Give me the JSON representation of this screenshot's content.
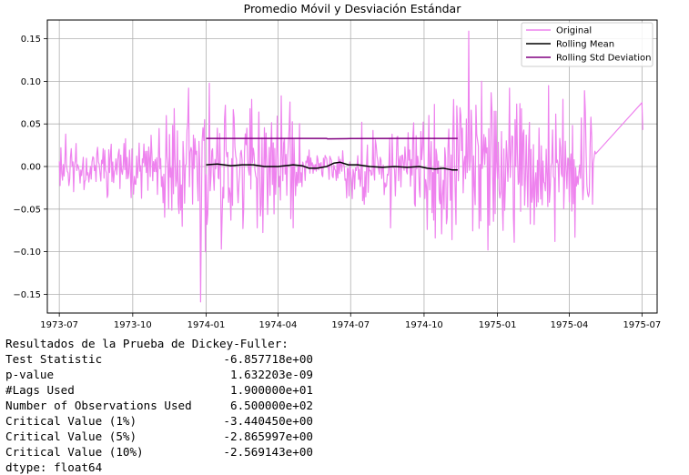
{
  "chart_data": {
    "type": "line",
    "title": "Promedio Móvil y Desviación Estándar",
    "xlabel": "",
    "ylabel": "",
    "xlim": [
      "1973-06-16",
      "1975-07-20"
    ],
    "ylim": [
      -0.172,
      0.172
    ],
    "grid": true,
    "legend_position": "top-right",
    "xticks": [
      "1973-07",
      "1973-10",
      "1974-01",
      "1974-04",
      "1974-07",
      "1974-10",
      "1975-01",
      "1975-04",
      "1975-07"
    ],
    "yticks": [
      "−0.15",
      "−0.10",
      "−0.05",
      "0.00",
      "0.05",
      "0.10",
      "0.15"
    ],
    "series": [
      {
        "name": "Original",
        "color": "#ee82ee",
        "noise_ranges": [
          {
            "start": "1973-07-01",
            "end": "1973-10-31",
            "amp": 0.028,
            "seed": 11
          },
          {
            "start": "1973-11-01",
            "end": "1973-12-31",
            "amp": 0.06,
            "seed": 23
          },
          {
            "start": "1974-01-01",
            "end": "1974-05-01",
            "amp": 0.06,
            "seed": 37
          },
          {
            "start": "1974-05-02",
            "end": "1974-06-25",
            "amp": 0.015,
            "seed": 41
          },
          {
            "start": "1974-06-26",
            "end": "1974-10-01",
            "amp": 0.04,
            "seed": 53
          },
          {
            "start": "1974-10-02",
            "end": "1975-01-31",
            "amp": 0.07,
            "seed": 67
          },
          {
            "start": "1975-02-01",
            "end": "1975-05-01",
            "amp": 0.055,
            "seed": 79
          }
        ],
        "points": [
          [
            "1973-07-01",
            0.006
          ],
          [
            "1973-07-05",
            -0.016
          ],
          [
            "1973-07-09",
            0.038
          ],
          [
            "1973-11-22",
            0.068
          ],
          [
            "1973-12-05",
            -0.043
          ],
          [
            "1973-12-10",
            0.092
          ],
          [
            "1973-12-15",
            -0.044
          ],
          [
            "1973-12-20",
            0.018
          ],
          [
            "1973-12-25",
            -0.159
          ],
          [
            "1973-12-30",
            0.055
          ],
          [
            "1973-12-31",
            -0.1
          ],
          [
            "1974-01-05",
            0.098
          ],
          [
            "1974-01-11",
            -0.028
          ],
          [
            "1974-01-15",
            0.045
          ],
          [
            "1974-01-20",
            -0.097
          ],
          [
            "1974-01-25",
            0.072
          ],
          [
            "1974-02-01",
            -0.063
          ],
          [
            "1974-03-10",
            -0.058
          ],
          [
            "1974-04-05",
            0.083
          ],
          [
            "1974-04-20",
            -0.072
          ],
          [
            "1974-06-27",
            -0.002
          ],
          [
            "1974-07-15",
            0.052
          ],
          [
            "1974-08-20",
            -0.072
          ],
          [
            "1974-09-27",
            0.041
          ],
          [
            "1974-10-07",
            0.06
          ],
          [
            "1974-10-12",
            -0.007
          ],
          [
            "1974-10-20",
            -0.038
          ],
          [
            "1974-10-27",
            0.022
          ],
          [
            "1974-11-01",
            0.044
          ],
          [
            "1974-11-10",
            -0.068
          ],
          [
            "1974-11-18",
            0.045
          ],
          [
            "1974-11-24",
            -0.007
          ],
          [
            "1974-11-26",
            0.159
          ],
          [
            "1974-12-05",
            0.072
          ],
          [
            "1974-12-12",
            0.1
          ],
          [
            "1974-12-20",
            -0.098
          ],
          [
            "1974-12-28",
            0.065
          ],
          [
            "1975-01-08",
            -0.075
          ],
          [
            "1975-01-16",
            0.092
          ],
          [
            "1975-01-22",
            -0.089
          ],
          [
            "1975-02-03",
            0.043
          ],
          [
            "1975-02-16",
            -0.068
          ],
          [
            "1975-03-06",
            0.095
          ],
          [
            "1975-03-14",
            -0.088
          ],
          [
            "1975-03-24",
            0.079
          ],
          [
            "1975-04-08",
            -0.083
          ],
          [
            "1975-04-20",
            0.089
          ],
          [
            "1975-04-24",
            -0.032
          ],
          [
            "1975-04-28",
            0.058
          ],
          [
            "1975-05-03",
            0.018
          ],
          [
            "1975-05-04",
            0.015
          ],
          [
            "1975-07-01",
            0.075
          ],
          [
            "1975-07-02",
            0.043
          ]
        ]
      },
      {
        "name": "Rolling Mean",
        "color": "#000000",
        "points": [
          [
            "1974-01-01",
            0.002
          ],
          [
            "1974-01-15",
            0.003
          ],
          [
            "1974-02-01",
            0.001
          ],
          [
            "1974-02-15",
            0.002
          ],
          [
            "1974-03-01",
            0.002
          ],
          [
            "1974-03-15",
            0.0
          ],
          [
            "1974-04-01",
            0.0
          ],
          [
            "1974-04-20",
            0.002
          ],
          [
            "1974-05-01",
            0.001
          ],
          [
            "1974-05-10",
            -0.002
          ],
          [
            "1974-05-20",
            -0.002
          ],
          [
            "1974-06-01",
            0.0
          ],
          [
            "1974-06-10",
            0.004
          ],
          [
            "1974-06-18",
            0.005
          ],
          [
            "1974-06-28",
            0.002
          ],
          [
            "1974-07-10",
            0.002
          ],
          [
            "1974-07-25",
            0.0
          ],
          [
            "1974-08-10",
            -0.001
          ],
          [
            "1974-08-25",
            0.0
          ],
          [
            "1974-09-10",
            -0.001
          ],
          [
            "1974-09-25",
            0.0
          ],
          [
            "1974-10-05",
            -0.002
          ],
          [
            "1974-10-15",
            -0.003
          ],
          [
            "1974-10-25",
            -0.002
          ],
          [
            "1974-11-05",
            -0.004
          ],
          [
            "1974-11-12",
            -0.004
          ]
        ]
      },
      {
        "name": "Rolling Std Deviation",
        "color": "#800080",
        "points": [
          [
            "1974-01-01",
            0.033
          ],
          [
            "1974-06-01",
            0.033
          ],
          [
            "1974-06-02",
            0.0325
          ],
          [
            "1974-07-01",
            0.0328
          ],
          [
            "1974-09-01",
            0.033
          ],
          [
            "1974-11-12",
            0.033
          ]
        ]
      }
    ]
  },
  "output": {
    "heading": "Resultados de la Prueba de Dickey-Fuller:",
    "rows": [
      {
        "label": "Test Statistic",
        "value": "-6.857718e+00"
      },
      {
        "label": "p-value",
        "value": "1.632203e-09"
      },
      {
        "label": "#Lags Used",
        "value": "1.900000e+01"
      },
      {
        "label": "Number of Observations Used",
        "value": "6.500000e+02"
      },
      {
        "label": "Critical Value (1%)",
        "value": "-3.440450e+00"
      },
      {
        "label": "Critical Value (5%)",
        "value": "-2.865997e+00"
      },
      {
        "label": "Critical Value (10%)",
        "value": "-2.569143e+00"
      }
    ],
    "dtype": "dtype: float64"
  }
}
